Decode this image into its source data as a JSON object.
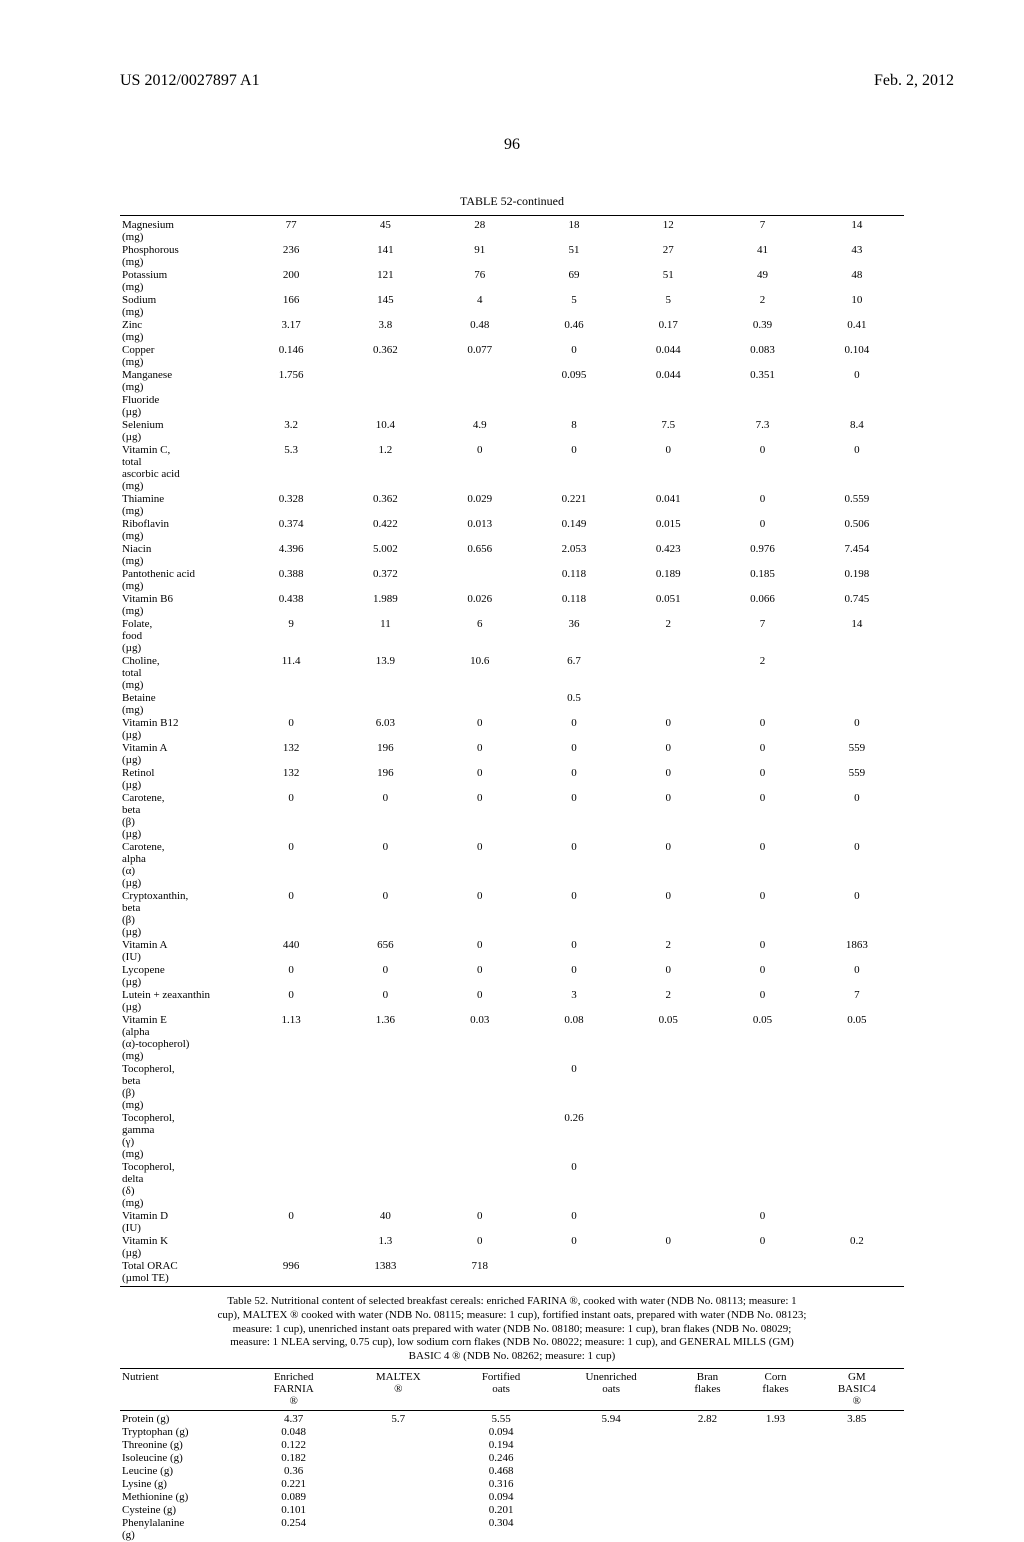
{
  "header": {
    "left": "US 2012/0027897 A1",
    "right": "Feb. 2, 2012"
  },
  "page_number": "96",
  "table1": {
    "title": "TABLE 52-continued",
    "rows": [
      [
        "Magnesium (mg)",
        "77",
        "45",
        "28",
        "18",
        "12",
        "7",
        "14"
      ],
      [
        "Phosphorous (mg)",
        "236",
        "141",
        "91",
        "51",
        "27",
        "41",
        "43"
      ],
      [
        "Potassium (mg)",
        "200",
        "121",
        "76",
        "69",
        "51",
        "49",
        "48"
      ],
      [
        "Sodium (mg)",
        "166",
        "145",
        "4",
        "5",
        "5",
        "2",
        "10"
      ],
      [
        "Zinc (mg)",
        "3.17",
        "3.8",
        "0.48",
        "0.46",
        "0.17",
        "0.39",
        "0.41"
      ],
      [
        "Copper (mg)",
        "0.146",
        "0.362",
        "0.077",
        "0",
        "0.044",
        "0.083",
        "0.104"
      ],
      [
        "Manganese (mg)",
        "1.756",
        "",
        "",
        "0.095",
        "0.044",
        "0.351",
        "0"
      ],
      [
        "Fluoride (µg)",
        "",
        "",
        "",
        "",
        "",
        "",
        ""
      ],
      [
        "Selenium (µg)",
        "3.2",
        "10.4",
        "4.9",
        "8",
        "7.5",
        "7.3",
        "8.4"
      ],
      [
        "Vitamin C, total ascorbic acid (mg)",
        "5.3",
        "1.2",
        "0",
        "0",
        "0",
        "0",
        "0"
      ],
      [
        "Thiamine (mg)",
        "0.328",
        "0.362",
        "0.029",
        "0.221",
        "0.041",
        "0",
        "0.559"
      ],
      [
        "Riboflavin (mg)",
        "0.374",
        "0.422",
        "0.013",
        "0.149",
        "0.015",
        "0",
        "0.506"
      ],
      [
        "Niacin (mg)",
        "4.396",
        "5.002",
        "0.656",
        "2.053",
        "0.423",
        "0.976",
        "7.454"
      ],
      [
        "Pantothenic acid (mg)",
        "0.388",
        "0.372",
        "",
        "0.118",
        "0.189",
        "0.185",
        "0.198"
      ],
      [
        "Vitamin B6 (mg)",
        "0.438",
        "1.989",
        "0.026",
        "0.118",
        "0.051",
        "0.066",
        "0.745"
      ],
      [
        "Folate, food (µg)",
        "9",
        "11",
        "6",
        "36",
        "2",
        "7",
        "14"
      ],
      [
        "Choline, total (mg)",
        "11.4",
        "13.9",
        "10.6",
        "6.7",
        "",
        "2",
        ""
      ],
      [
        "Betaine (mg)",
        "",
        "",
        "",
        "0.5",
        "",
        "",
        ""
      ],
      [
        "Vitamin B12 (µg)",
        "0",
        "6.03",
        "0",
        "0",
        "0",
        "0",
        "0"
      ],
      [
        "Vitamin A (µg)",
        "132",
        "196",
        "0",
        "0",
        "0",
        "0",
        "559"
      ],
      [
        "Retinol (µg)",
        "132",
        "196",
        "0",
        "0",
        "0",
        "0",
        "559"
      ],
      [
        "Carotene, beta (β) (µg)",
        "0",
        "0",
        "0",
        "0",
        "0",
        "0",
        "0"
      ],
      [
        "Carotene, alpha (α) (µg)",
        "0",
        "0",
        "0",
        "0",
        "0",
        "0",
        "0"
      ],
      [
        "Cryptoxanthin, beta (β) (µg)",
        "0",
        "0",
        "0",
        "0",
        "0",
        "0",
        "0"
      ],
      [
        "Vitamin A (IU)",
        "440",
        "656",
        "0",
        "0",
        "2",
        "0",
        "1863"
      ],
      [
        "Lycopene (µg)",
        "0",
        "0",
        "0",
        "0",
        "0",
        "0",
        "0"
      ],
      [
        "Lutein + zeaxanthin (µg)",
        "0",
        "0",
        "0",
        "3",
        "2",
        "0",
        "7"
      ],
      [
        "Vitamin E (alpha (α)-tocopherol) (mg)",
        "1.13",
        "1.36",
        "0.03",
        "0.08",
        "0.05",
        "0.05",
        "0.05"
      ],
      [
        "Tocopherol, beta (β) (mg)",
        "",
        "",
        "",
        "0",
        "",
        "",
        ""
      ],
      [
        "Tocopherol, gamma (γ) (mg)",
        "",
        "",
        "",
        "0.26",
        "",
        "",
        ""
      ],
      [
        "Tocopherol, delta (δ) (mg)",
        "",
        "",
        "",
        "0",
        "",
        "",
        ""
      ],
      [
        "Vitamin D (IU)",
        "0",
        "40",
        "0",
        "0",
        "",
        "0",
        ""
      ],
      [
        "Vitamin K (µg)",
        "",
        "1.3",
        "0",
        "0",
        "0",
        "0",
        "0.2"
      ],
      [
        "Total ORAC (µmol TE)",
        "996",
        "1383",
        "718",
        "",
        "",
        "",
        ""
      ]
    ]
  },
  "caption": "Table 52. Nutritional content of selected breakfast cereals: enriched FARINA ®, cooked with water (NDB No. 08113; measure: 1 cup), MALTEX ® cooked with water (NDB No. 08115; measure: 1 cup), fortified instant oats, prepared with water (NDB No. 08123; measure: 1 cup), unenriched instant oats prepared with water (NDB No. 08180; measure: 1 cup), bran flakes (NDB No. 08029; measure: 1 NLEA serving, 0.75 cup), low sodium corn flakes (NDB No. 08022; measure: 1 cup), and GENERAL MILLS (GM) BASIC 4 ® (NDB No. 08262; measure: 1 cup)",
  "table2": {
    "headers": [
      "Nutrient",
      "Enriched FARNIA ®",
      "MALTEX ®",
      "Fortified oats",
      "Unenriched oats",
      "Bran flakes",
      "Corn flakes",
      "GM BASIC4 ®"
    ],
    "rows": [
      [
        "Protein (g)",
        "4.37",
        "5.7",
        "5.55",
        "5.94",
        "2.82",
        "1.93",
        "3.85"
      ],
      [
        "Tryptophan (g)",
        "0.048",
        "",
        "0.094",
        "",
        "",
        "",
        ""
      ],
      [
        "Threonine (g)",
        "0.122",
        "",
        "0.194",
        "",
        "",
        "",
        ""
      ],
      [
        "Isoleucine (g)",
        "0.182",
        "",
        "0.246",
        "",
        "",
        "",
        ""
      ],
      [
        "Leucine (g)",
        "0.36",
        "",
        "0.468",
        "",
        "",
        "",
        ""
      ],
      [
        "Lysine (g)",
        "0.221",
        "",
        "0.316",
        "",
        "",
        "",
        ""
      ],
      [
        "Methionine (g)",
        "0.089",
        "",
        "0.094",
        "",
        "",
        "",
        ""
      ],
      [
        "Cysteine (g)",
        "0.101",
        "",
        "0.201",
        "",
        "",
        "",
        ""
      ],
      [
        "Phenylalanine (g)",
        "0.254",
        "",
        "0.304",
        "",
        "",
        "",
        ""
      ]
    ]
  }
}
